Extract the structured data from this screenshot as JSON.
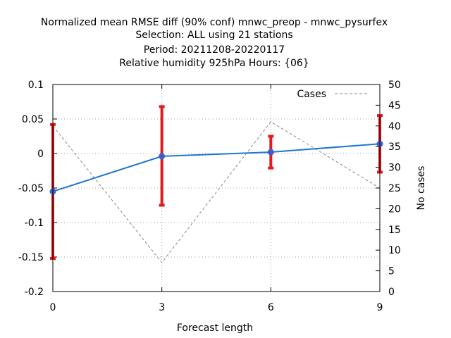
{
  "chart_data": {
    "type": "line",
    "title_lines": [
      "Normalized mean RMSE diff (90% conf) mnwc_preop - mnwc_pysurfex",
      "Selection: ALL using    21 stations",
      "Period: 20211208-20220117",
      "Relative humidity 925hPa   Hours: {06}"
    ],
    "xlabel": "Forecast length",
    "ylabel_left": "",
    "ylabel_right": "No cases",
    "x": [
      0,
      3,
      6,
      9
    ],
    "xlim": [
      0,
      9
    ],
    "xticks": [
      "0",
      "3",
      "6",
      "9"
    ],
    "ylim_left": [
      -0.2,
      0.1
    ],
    "yticks_left": [
      "-0.2",
      "-0.15",
      "-0.1",
      "-0.05",
      "0",
      "0.05",
      "0.1"
    ],
    "ylim_right": [
      0,
      50
    ],
    "yticks_right": [
      "0",
      "5",
      "10",
      "15",
      "20",
      "25",
      "30",
      "35",
      "40",
      "45",
      "50"
    ],
    "grid": true,
    "legend_position": "top-right",
    "series": [
      {
        "axis": "left",
        "color": "#1f77d0",
        "values": [
          -0.055,
          -0.004,
          0.002,
          0.014
        ],
        "error_low": [
          -0.152,
          -0.075,
          -0.021,
          -0.027
        ],
        "error_high": [
          0.042,
          0.068,
          0.025,
          0.055
        ],
        "error_color": "#e41a1c"
      },
      {
        "name": "Cases",
        "axis": "right",
        "color": "#888888",
        "dash": true,
        "values": [
          40,
          7,
          41,
          25
        ]
      }
    ]
  }
}
